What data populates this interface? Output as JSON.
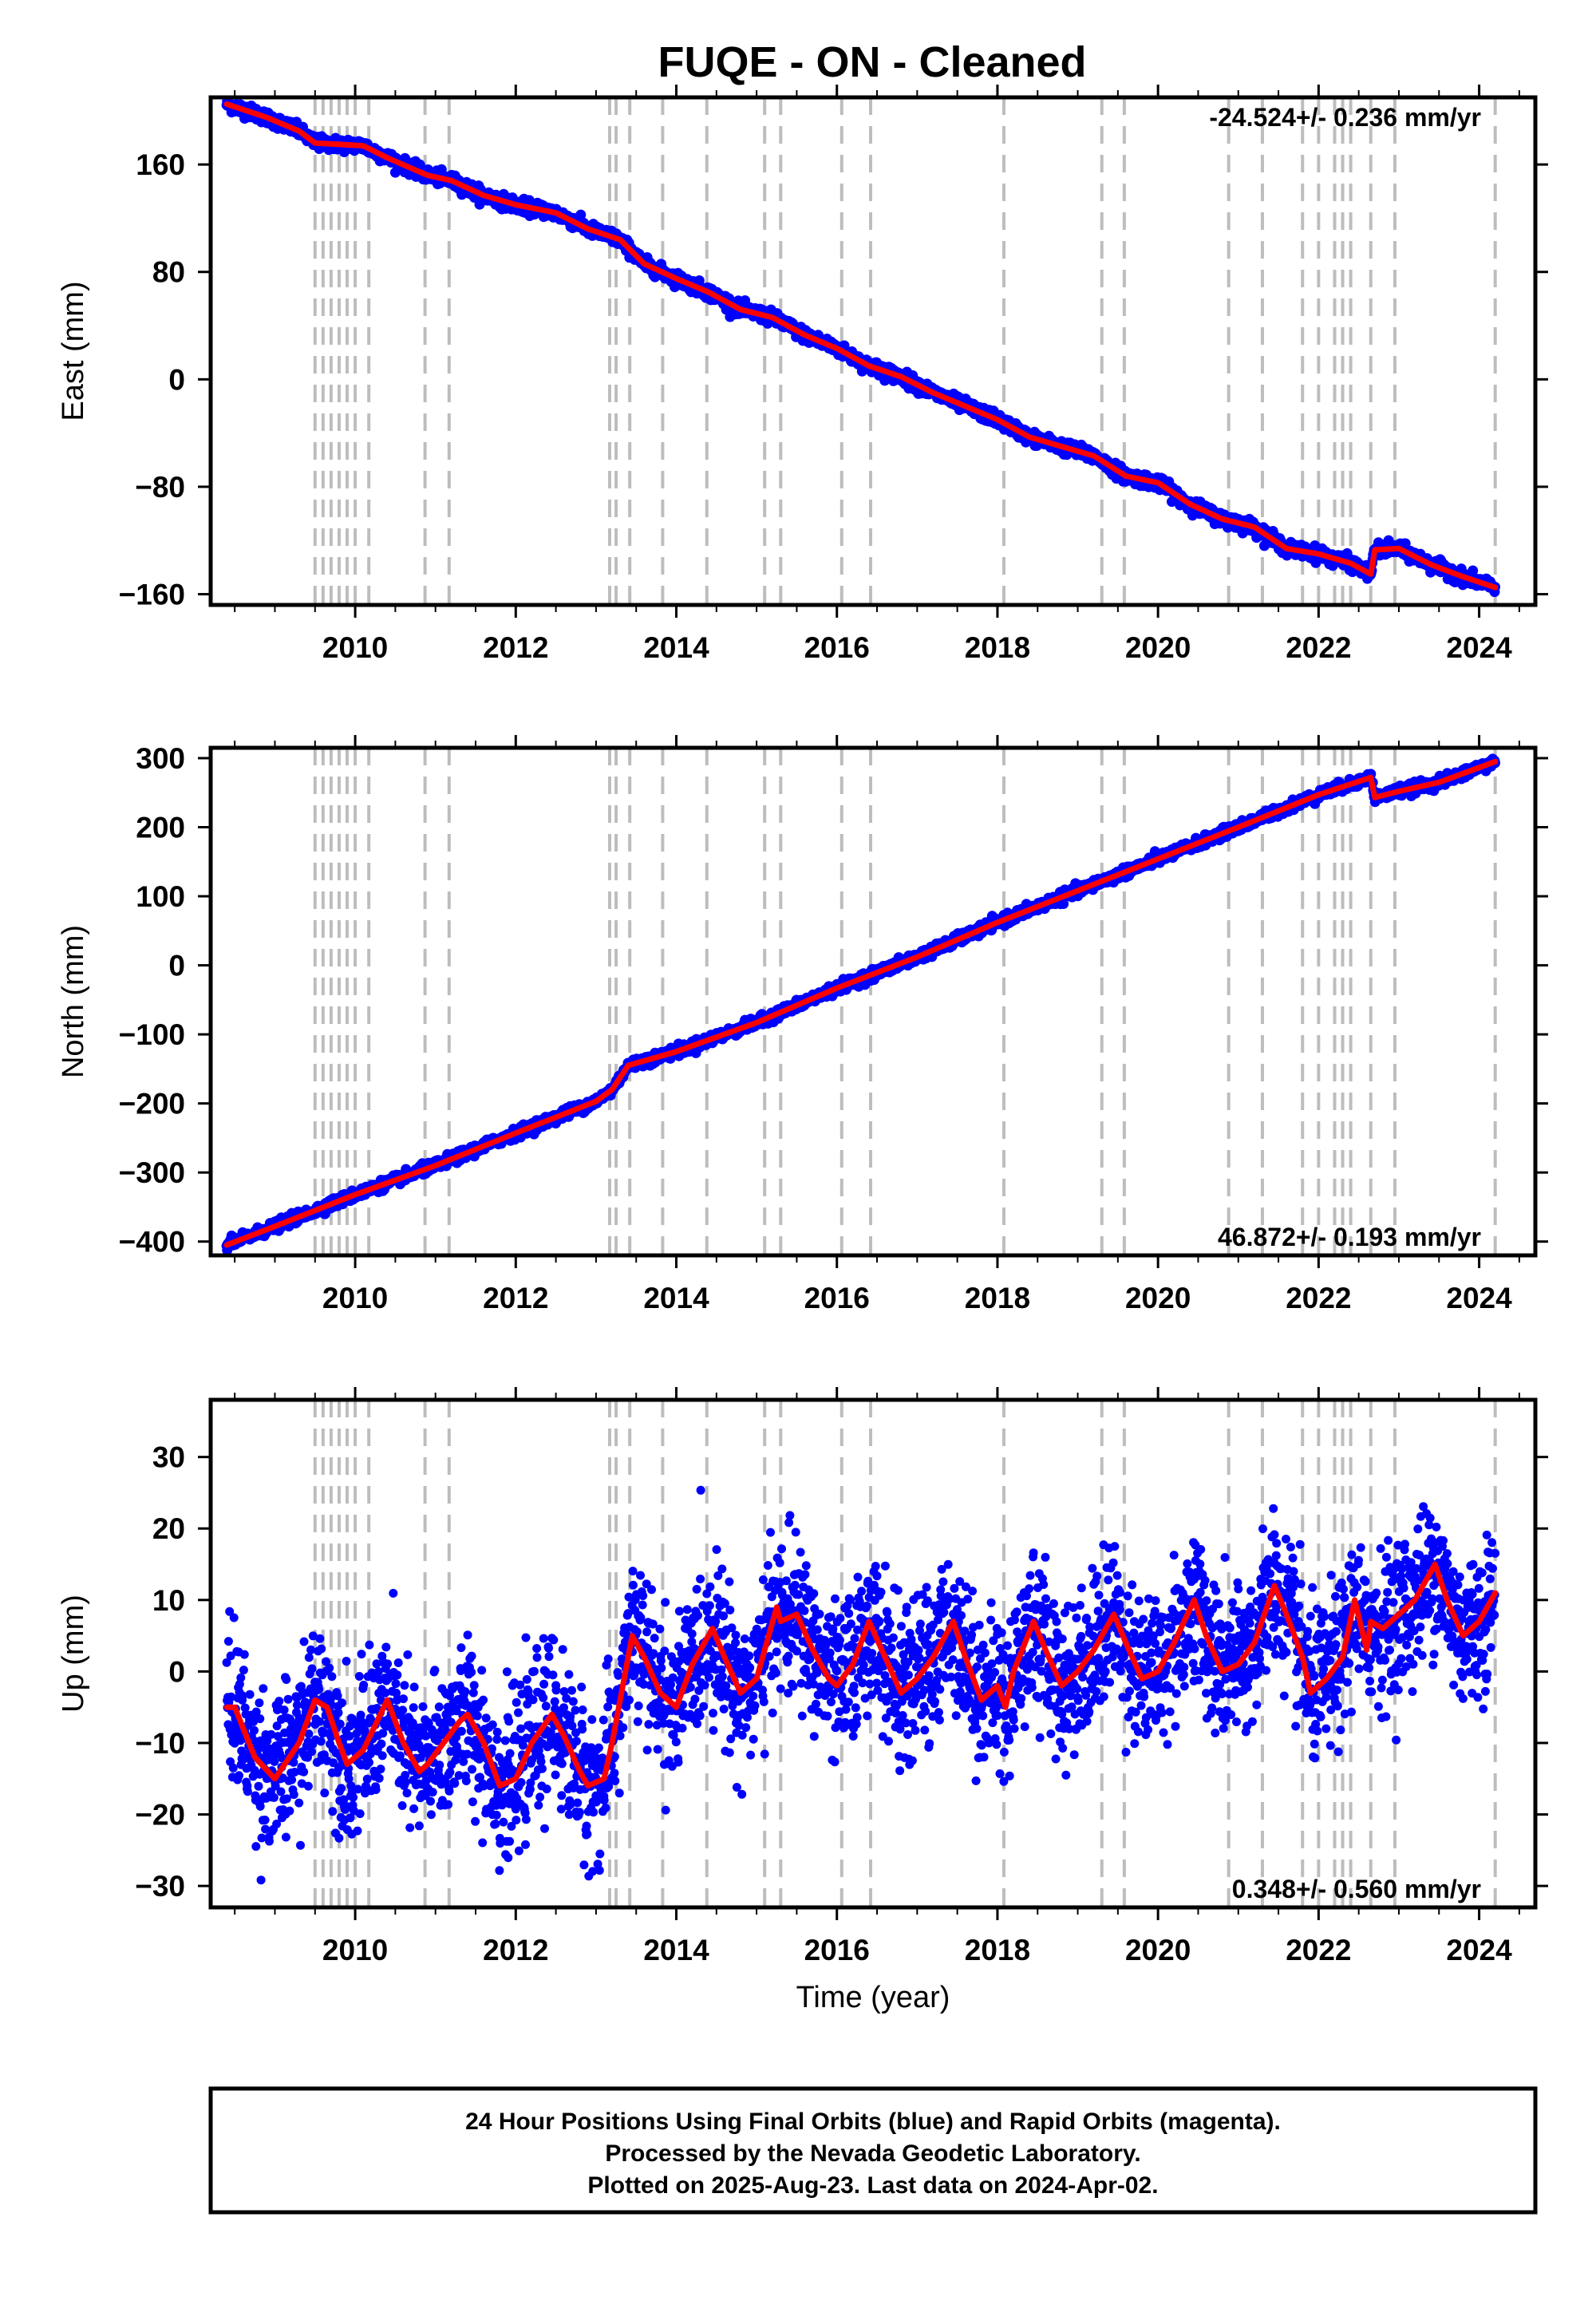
{
  "title": "FUQE  - ON - Cleaned",
  "footer": {
    "line1": "24 Hour Positions Using Final Orbits (blue) and Rapid Orbits (magenta).",
    "line2": "Processed by the Nevada Geodetic Laboratory.",
    "line3": "Plotted on 2025-Aug-23. Last data on 2024-Apr-02."
  },
  "colors": {
    "points": "#0000ff",
    "model": "#ff0000",
    "event_lines": "#bdbdbd"
  },
  "chart_data": [
    {
      "type": "scatter",
      "panel": "east",
      "ylabel": "East (mm)",
      "xlabel": "",
      "rate_text": "-24.524+/- 0.236 mm/yr",
      "rate_position": "top-right",
      "xlim": [
        2008.2,
        2024.7
      ],
      "ylim": [
        -168,
        210
      ],
      "xticks": [
        2010,
        2012,
        2014,
        2016,
        2018,
        2020,
        2022,
        2024
      ],
      "yticks": [
        -160,
        -80,
        0,
        80,
        160
      ],
      "event_lines": [
        2009.5,
        2009.6,
        2009.7,
        2009.8,
        2009.9,
        2010.0,
        2010.17,
        2010.87,
        2011.17,
        2013.17,
        2013.25,
        2013.42,
        2013.83,
        2014.38,
        2015.1,
        2015.3,
        2016.06,
        2016.42,
        2018.08,
        2019.3,
        2019.58,
        2020.88,
        2021.3,
        2021.8,
        2022.0,
        2022.2,
        2022.3,
        2022.4,
        2022.65,
        2022.95,
        2024.2
      ],
      "series": [
        {
          "role": "model",
          "x": [
            2008.4,
            2008.9,
            2009.3,
            2009.5,
            2009.8,
            2010.1,
            2010.4,
            2010.9,
            2011.2,
            2011.6,
            2012.0,
            2012.5,
            2012.9,
            2013.1,
            2013.3,
            2013.6,
            2014.0,
            2014.4,
            2014.8,
            2015.2,
            2015.6,
            2016.0,
            2016.4,
            2016.8,
            2017.2,
            2017.6,
            2018.0,
            2018.4,
            2018.8,
            2019.2,
            2019.6,
            2020.0,
            2020.4,
            2020.8,
            2021.2,
            2021.6,
            2022.0,
            2022.4,
            2022.65,
            2022.7,
            2023.0,
            2023.4,
            2023.8,
            2024.2
          ],
          "y": [
            205,
            195,
            185,
            176,
            175,
            174,
            165,
            152,
            148,
            137,
            130,
            124,
            112,
            108,
            104,
            86,
            75,
            65,
            52,
            46,
            33,
            23,
            10,
            2,
            -10,
            -20,
            -30,
            -43,
            -50,
            -57,
            -72,
            -77,
            -93,
            -104,
            -110,
            -126,
            -130,
            -137,
            -145,
            -127,
            -126,
            -138,
            -147,
            -155
          ]
        }
      ]
    },
    {
      "type": "scatter",
      "panel": "north",
      "ylabel": "North (mm)",
      "xlabel": "",
      "rate_text": "46.872+/- 0.193 mm/yr",
      "rate_position": "bottom-right",
      "xlim": [
        2008.2,
        2024.7
      ],
      "ylim": [
        -420,
        315
      ],
      "xticks": [
        2010,
        2012,
        2014,
        2016,
        2018,
        2020,
        2022,
        2024
      ],
      "yticks": [
        -400,
        -300,
        -200,
        -100,
        0,
        100,
        200,
        300
      ],
      "event_lines": [
        2009.5,
        2009.6,
        2009.7,
        2009.8,
        2009.9,
        2010.0,
        2010.17,
        2010.87,
        2011.17,
        2013.17,
        2013.25,
        2013.42,
        2013.83,
        2014.38,
        2015.1,
        2015.3,
        2016.06,
        2016.42,
        2018.08,
        2019.3,
        2019.58,
        2020.88,
        2021.3,
        2021.8,
        2022.0,
        2022.2,
        2022.3,
        2022.4,
        2022.65,
        2022.95,
        2024.2
      ],
      "series": [
        {
          "role": "model",
          "x": [
            2008.4,
            2009.0,
            2010.0,
            2011.0,
            2012.0,
            2013.0,
            2013.2,
            2013.4,
            2014.0,
            2015.0,
            2016.0,
            2017.0,
            2018.0,
            2019.0,
            2020.0,
            2021.0,
            2022.0,
            2022.65,
            2022.7,
            2023.0,
            2023.5,
            2024.2
          ],
          "y": [
            -405,
            -378,
            -332,
            -290,
            -243,
            -197,
            -180,
            -145,
            -125,
            -83,
            -33,
            12,
            62,
            108,
            154,
            200,
            247,
            272,
            243,
            252,
            265,
            295
          ]
        }
      ]
    },
    {
      "type": "scatter",
      "panel": "up",
      "ylabel": "Up (mm)",
      "xlabel": "Time (year)",
      "rate_text": "0.348+/- 0.560 mm/yr",
      "rate_position": "bottom-right",
      "xlim": [
        2008.2,
        2024.7
      ],
      "ylim": [
        -33,
        38
      ],
      "xticks": [
        2010,
        2012,
        2014,
        2016,
        2018,
        2020,
        2022,
        2024
      ],
      "yticks": [
        -30,
        -20,
        -10,
        0,
        10,
        20,
        30
      ],
      "event_lines": [
        2009.5,
        2009.6,
        2009.7,
        2009.8,
        2009.9,
        2010.0,
        2010.17,
        2010.87,
        2011.17,
        2013.17,
        2013.25,
        2013.42,
        2013.83,
        2014.38,
        2015.1,
        2015.3,
        2016.06,
        2016.42,
        2018.08,
        2019.3,
        2019.58,
        2020.88,
        2021.3,
        2021.8,
        2022.0,
        2022.2,
        2022.3,
        2022.4,
        2022.65,
        2022.95,
        2024.2
      ],
      "series": [
        {
          "role": "model",
          "x": [
            2008.4,
            2008.5,
            2008.75,
            2009.0,
            2009.3,
            2009.5,
            2009.65,
            2009.8,
            2009.9,
            2010.1,
            2010.4,
            2010.6,
            2010.8,
            2010.9,
            2011.1,
            2011.3,
            2011.4,
            2011.6,
            2011.8,
            2012.0,
            2012.2,
            2012.45,
            2012.6,
            2012.8,
            2012.9,
            2013.1,
            2013.2,
            2013.45,
            2013.6,
            2013.8,
            2014.0,
            2014.2,
            2014.45,
            2014.6,
            2014.8,
            2015.0,
            2015.1,
            2015.25,
            2015.3,
            2015.5,
            2015.7,
            2015.9,
            2016.0,
            2016.2,
            2016.4,
            2016.6,
            2016.8,
            2017.0,
            2017.2,
            2017.45,
            2017.6,
            2017.8,
            2018.0,
            2018.1,
            2018.2,
            2018.45,
            2018.6,
            2018.8,
            2019.0,
            2019.2,
            2019.45,
            2019.6,
            2019.8,
            2020.0,
            2020.2,
            2020.45,
            2020.6,
            2020.8,
            2021.0,
            2021.2,
            2021.45,
            2021.6,
            2021.8,
            2021.9,
            2022.1,
            2022.3,
            2022.45,
            2022.6,
            2022.65,
            2022.8,
            2023.0,
            2023.2,
            2023.45,
            2023.6,
            2023.8,
            2024.0,
            2024.2
          ],
          "y": [
            -5,
            -5,
            -12,
            -15,
            -10,
            -4,
            -5,
            -10,
            -13,
            -11,
            -4,
            -10,
            -14,
            -13,
            -10,
            -7,
            -6,
            -10,
            -16,
            -15,
            -10,
            -6,
            -9,
            -14,
            -16,
            -15,
            -10,
            5,
            2,
            -3,
            -5,
            1,
            6,
            2,
            -3,
            -1,
            3,
            9,
            7,
            8,
            3,
            -1,
            -2,
            1,
            7,
            2,
            -3,
            -1,
            2,
            7,
            2,
            -4,
            -2,
            -5,
            0,
            7,
            3,
            -2,
            0,
            3,
            8,
            4,
            -1,
            0,
            4,
            10,
            5,
            0,
            1,
            4,
            12,
            8,
            2,
            -3,
            -1,
            2,
            10,
            3,
            7,
            6,
            8,
            10,
            15,
            10,
            5,
            7,
            11
          ]
        }
      ]
    }
  ]
}
